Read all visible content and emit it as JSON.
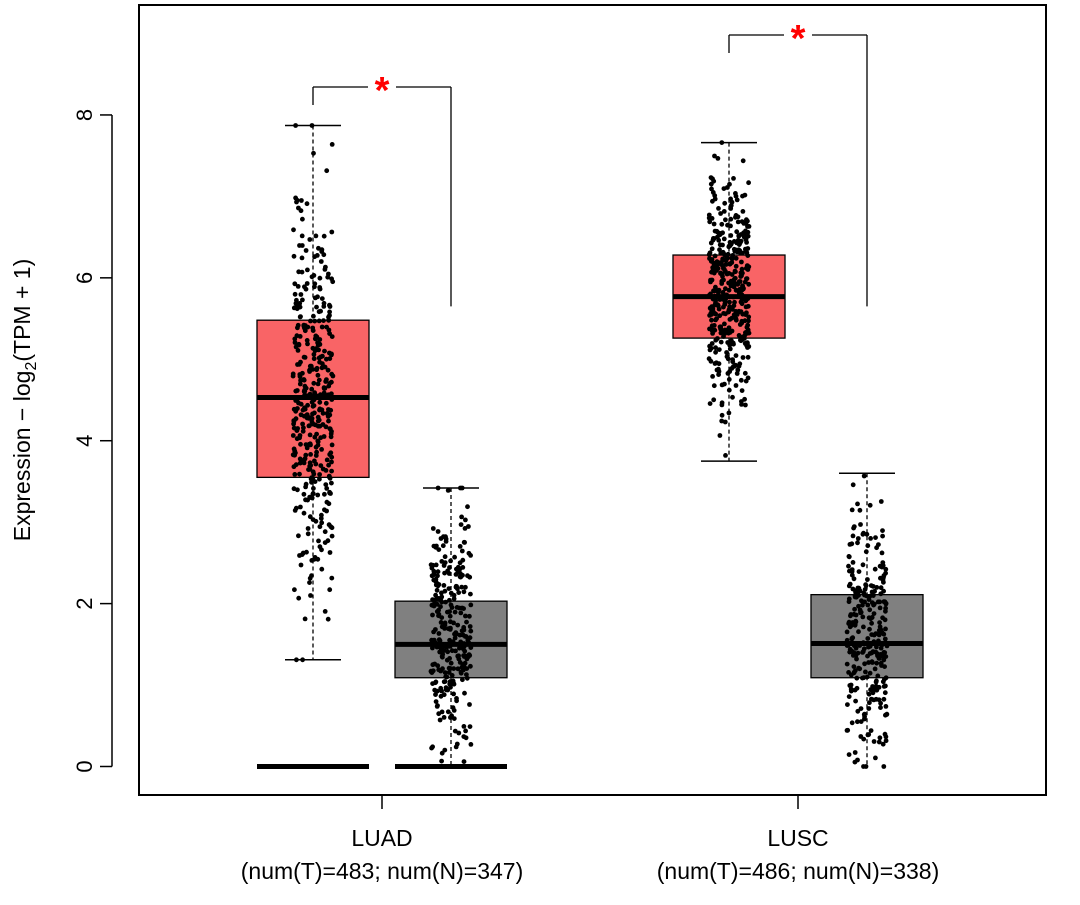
{
  "chart_data": {
    "type": "box",
    "ylabel": {
      "prefix": "Expression − log",
      "subscript": "2",
      "suffix": "(TPM + 1)"
    },
    "ylim": [
      -0.35,
      9.35
    ],
    "yticks": [
      0,
      2,
      4,
      6,
      8
    ],
    "grid": false,
    "categories": [
      {
        "name": "LUAD",
        "sub": "(num(T)=483; num(N)=347)",
        "significance": "*",
        "boxes": [
          {
            "group": "T",
            "n": 483,
            "color": "#F96466",
            "q1": 3.55,
            "median": 4.53,
            "q3": 5.48,
            "whisker_low": 1.31,
            "whisker_high": 7.87,
            "jitter_center": 4.6,
            "jitter_spread": 1.15,
            "zero_floor": true
          },
          {
            "group": "N",
            "n": 347,
            "color": "#808080",
            "q1": 1.09,
            "median": 1.5,
            "q3": 2.03,
            "whisker_low": 0.0,
            "whisker_high": 3.42,
            "jitter_center": 1.6,
            "jitter_spread": 0.75,
            "zero_floor": true
          }
        ]
      },
      {
        "name": "LUSC",
        "sub": "(num(T)=486; num(N)=338)",
        "significance": "*",
        "boxes": [
          {
            "group": "T",
            "n": 486,
            "color": "#F96466",
            "q1": 5.26,
            "median": 5.77,
            "q3": 6.28,
            "whisker_low": 3.75,
            "whisker_high": 7.66,
            "jitter_center": 5.8,
            "jitter_spread": 0.7,
            "zero_floor": false
          },
          {
            "group": "N",
            "n": 338,
            "color": "#808080",
            "q1": 1.09,
            "median": 1.51,
            "q3": 2.11,
            "whisker_low": 0.0,
            "whisker_high": 3.6,
            "jitter_center": 1.6,
            "jitter_spread": 0.75,
            "zero_floor": false
          }
        ]
      }
    ]
  }
}
